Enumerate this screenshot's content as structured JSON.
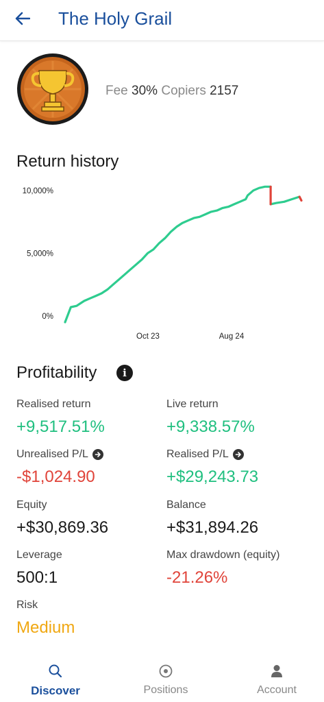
{
  "header": {
    "title": "The Holy Grail"
  },
  "strategy": {
    "fee_label": "Fee",
    "fee_value": "30%",
    "copiers_label": "Copiers",
    "copiers_value": "2157"
  },
  "return_history": {
    "title": "Return history"
  },
  "chart_data": {
    "type": "line",
    "title": "Return history",
    "y_ticks": [
      "10,000%",
      "5,000%",
      "0%"
    ],
    "y_tick_values": [
      10000,
      5000,
      0
    ],
    "x_ticks": [
      "Oct 23",
      "Aug 24"
    ],
    "ylim": [
      -500,
      10700
    ],
    "grid": false,
    "series": [
      {
        "color": "#2ecc8f",
        "points": [
          [
            0,
            -500
          ],
          [
            1.5,
            700
          ],
          [
            3,
            800
          ],
          [
            4,
            1000
          ],
          [
            5,
            1200
          ],
          [
            6.5,
            1400
          ],
          [
            8,
            1600
          ],
          [
            9.5,
            1800
          ],
          [
            11,
            2100
          ],
          [
            12.5,
            2500
          ],
          [
            14,
            2900
          ],
          [
            15.5,
            3300
          ],
          [
            17,
            3700
          ],
          [
            18.5,
            4100
          ],
          [
            20,
            4500
          ],
          [
            21.5,
            5000
          ],
          [
            23,
            5300
          ],
          [
            24.5,
            5800
          ],
          [
            26,
            6200
          ],
          [
            27.5,
            6700
          ],
          [
            29,
            7100
          ],
          [
            30.5,
            7400
          ],
          [
            32,
            7600
          ],
          [
            33.5,
            7800
          ],
          [
            35,
            7900
          ],
          [
            36.5,
            8100
          ],
          [
            38,
            8300
          ],
          [
            39.5,
            8400
          ],
          [
            41,
            8600
          ],
          [
            42.5,
            8700
          ],
          [
            44,
            8900
          ],
          [
            45.5,
            9100
          ],
          [
            47,
            9300
          ],
          [
            47.5,
            9600
          ],
          [
            49,
            10000
          ],
          [
            50.5,
            10200
          ],
          [
            52,
            10300
          ],
          [
            52.5,
            10300
          ],
          [
            53.5,
            10300
          ]
        ]
      },
      {
        "color": "#2ecc8f",
        "points": [
          [
            53.5,
            8900
          ],
          [
            55,
            9000
          ],
          [
            57,
            9100
          ],
          [
            59,
            9300
          ],
          [
            61,
            9500
          ]
        ]
      },
      {
        "color": "#e0443a",
        "points": [
          [
            53.5,
            10300
          ],
          [
            53.5,
            8900
          ]
        ]
      },
      {
        "color": "#e0443a",
        "points": [
          [
            61,
            9500
          ],
          [
            61.5,
            9200
          ]
        ]
      }
    ]
  },
  "profitability": {
    "title": "Profitability",
    "info_icon": "info-icon",
    "metrics": [
      {
        "label": "Realised return",
        "value": "+9,517.51%"
      },
      {
        "label": "Live return",
        "value": "+9,338.57%"
      },
      {
        "label": "Unrealised P/L",
        "value": "-$1,024.90"
      },
      {
        "label": "Realised P/L",
        "value": "+$29,243.73"
      },
      {
        "label": "Equity",
        "value": "+$30,869.36"
      },
      {
        "label": "Balance",
        "value": "+$31,894.26"
      },
      {
        "label": "Leverage",
        "value": "500:1"
      },
      {
        "label": "Max drawdown (equity)",
        "value": "-21.26%"
      },
      {
        "label": "Risk",
        "value": "Medium"
      }
    ],
    "colors": {
      "positive": "#1fbf7f",
      "negative": "#e0443a",
      "risk_medium": "#f0a813"
    }
  },
  "bottom_nav": {
    "items": [
      {
        "label": "Discover",
        "icon": "search-icon",
        "active": true
      },
      {
        "label": "Positions",
        "icon": "target-icon",
        "active": false
      },
      {
        "label": "Account",
        "icon": "person-icon",
        "active": false
      }
    ],
    "active_color": "#1a4f9c"
  }
}
